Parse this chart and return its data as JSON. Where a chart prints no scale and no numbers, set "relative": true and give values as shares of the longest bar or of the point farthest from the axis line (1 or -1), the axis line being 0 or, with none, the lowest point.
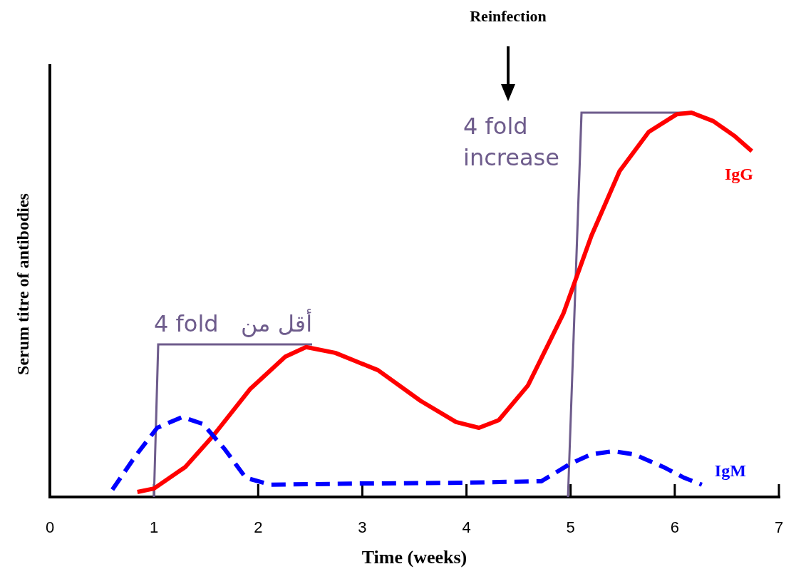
{
  "chart_data": {
    "type": "line",
    "relative": true,
    "xlabel": "Time (weeks)",
    "ylabel": "Serum titre of antibodies",
    "xlim": [
      0,
      7
    ],
    "xticks": [
      0,
      1,
      2,
      3,
      4,
      5,
      6,
      7
    ],
    "grid": false,
    "legend": false,
    "series": [
      {
        "name": "IgG",
        "color": "#ff0000",
        "line_style": "solid",
        "x": [
          0.84,
          1.0,
          1.3,
          1.57,
          1.92,
          2.26,
          2.46,
          2.74,
          3.15,
          3.56,
          3.9,
          4.12,
          4.31,
          4.59,
          4.93,
          5.2,
          5.47,
          5.75,
          6.02,
          6.16,
          6.37,
          6.57,
          6.74
        ],
        "values": [
          0.013,
          0.022,
          0.078,
          0.16,
          0.28,
          0.365,
          0.39,
          0.375,
          0.33,
          0.25,
          0.195,
          0.18,
          0.2,
          0.29,
          0.477,
          0.68,
          0.848,
          0.95,
          0.996,
          1.0,
          0.978,
          0.94,
          0.9
        ]
      },
      {
        "name": "IgM",
        "color": "#0000ff",
        "line_style": "dashed",
        "x": [
          0.6,
          0.82,
          1.03,
          1.27,
          1.47,
          1.68,
          1.88,
          2.12,
          2.94,
          3.97,
          4.72,
          5.0,
          5.2,
          5.41,
          5.61,
          5.89,
          6.09,
          6.26
        ],
        "values": [
          0.019,
          0.106,
          0.18,
          0.208,
          0.19,
          0.124,
          0.05,
          0.032,
          0.035,
          0.037,
          0.041,
          0.087,
          0.111,
          0.119,
          0.111,
          0.078,
          0.05,
          0.032
        ]
      }
    ],
    "annotations": [
      "Reinfection",
      "4 fold",
      "أقل من",
      "4 fold increase"
    ]
  }
}
